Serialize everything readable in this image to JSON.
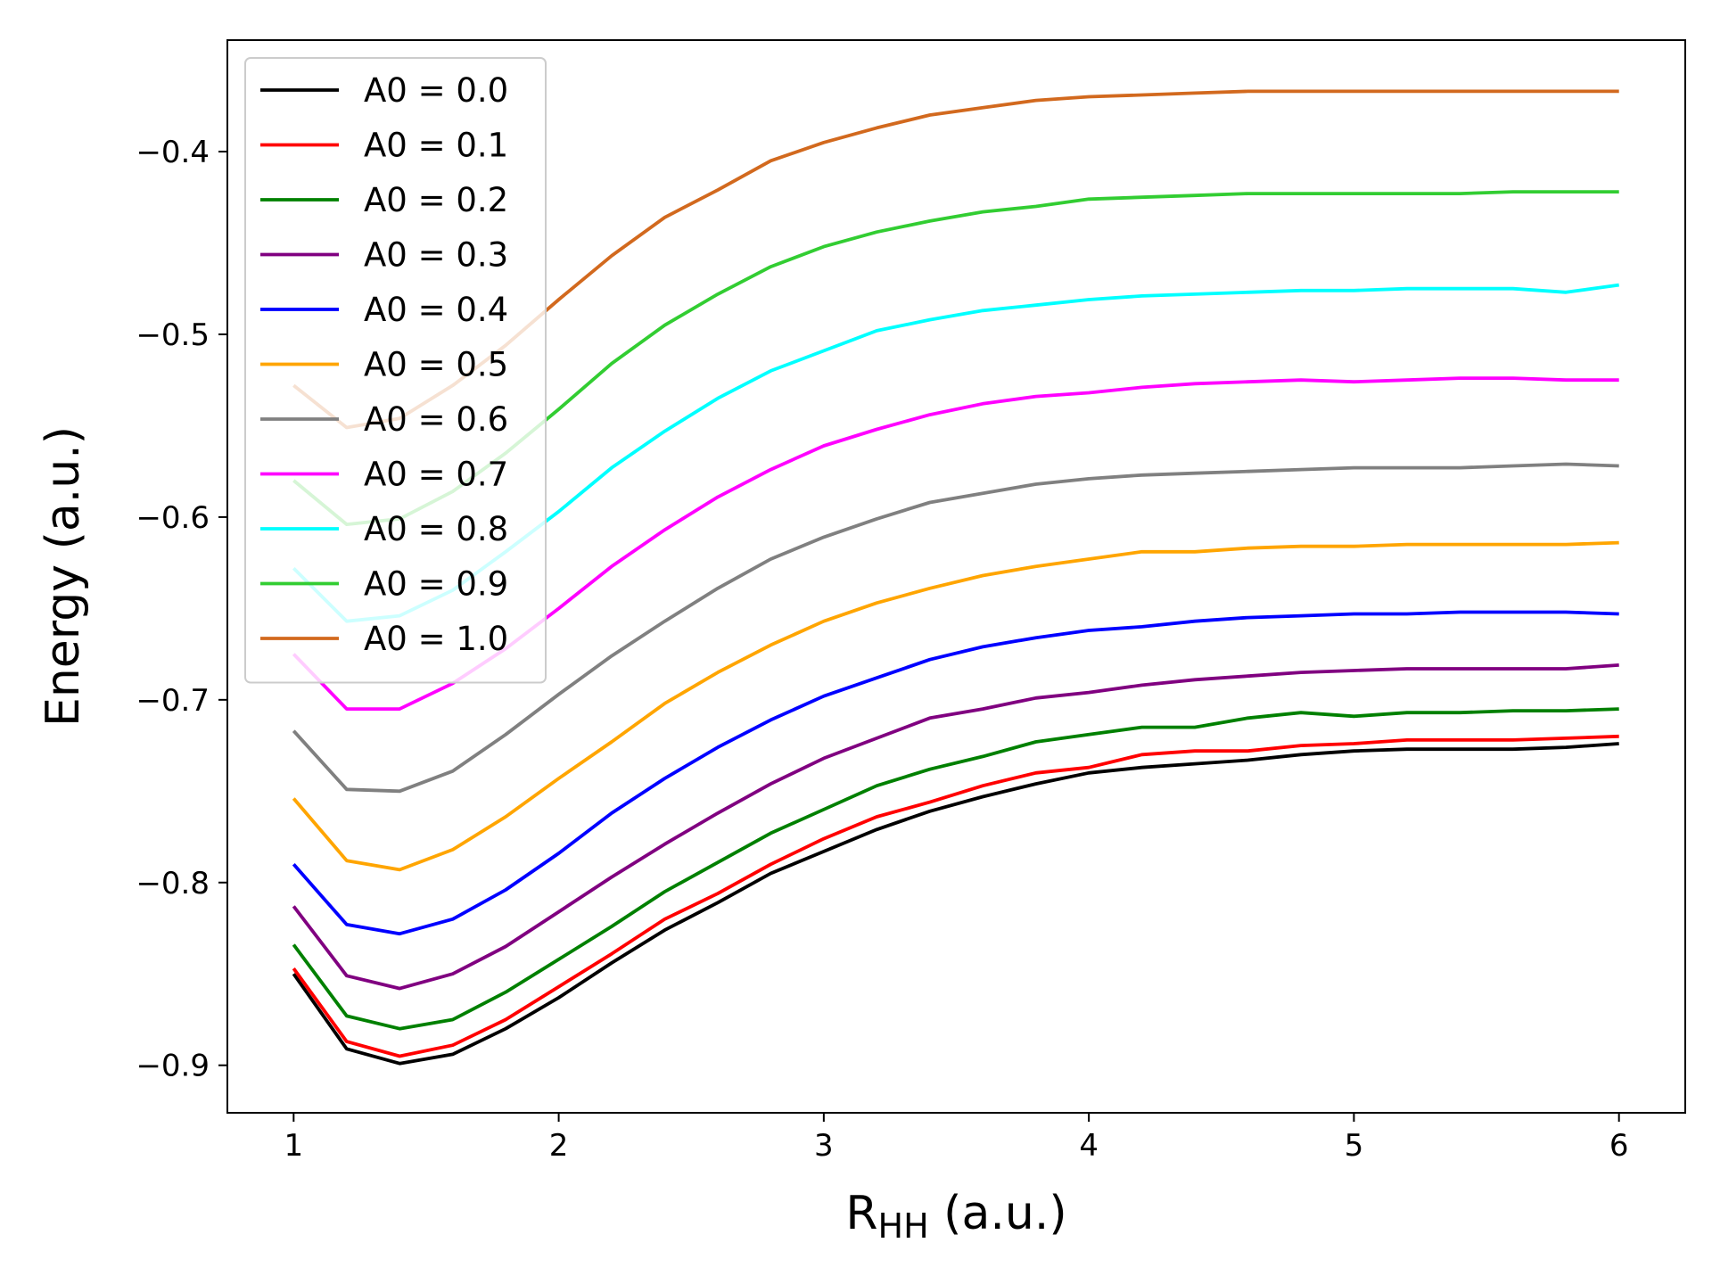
{
  "chart_data": {
    "type": "line",
    "xlabel": {
      "main": "R",
      "sub": "HH",
      "unit": " (a.u.)"
    },
    "ylabel": "Energy (a.u.)",
    "xlim": [
      0.75,
      6.25
    ],
    "ylim": [
      -0.926,
      -0.339
    ],
    "xticks": [
      1,
      2,
      3,
      4,
      5,
      6
    ],
    "xtick_labels": [
      "1",
      "2",
      "3",
      "4",
      "5",
      "6"
    ],
    "yticks": [
      -0.4,
      -0.5,
      -0.6,
      -0.7,
      -0.8,
      -0.9
    ],
    "ytick_labels": [
      "−0.4",
      "−0.5",
      "−0.6",
      "−0.7",
      "−0.8",
      "−0.9"
    ],
    "grid": false,
    "legend_position": "top-left",
    "x": [
      1.0,
      1.2,
      1.4,
      1.6,
      1.8,
      2.0,
      2.2,
      2.4,
      2.6,
      2.8,
      3.0,
      3.2,
      3.4,
      3.6,
      3.8,
      4.0,
      4.2,
      4.4,
      4.6,
      4.8,
      5.0,
      5.2,
      5.4,
      5.6,
      5.8,
      6.0
    ],
    "series": [
      {
        "name": "A0 = 0.0",
        "color": "#000000",
        "values": [
          -0.85,
          -0.891,
          -0.899,
          -0.894,
          -0.88,
          -0.863,
          -0.844,
          -0.826,
          -0.811,
          -0.795,
          -0.783,
          -0.771,
          -0.761,
          -0.753,
          -0.746,
          -0.74,
          -0.737,
          -0.735,
          -0.733,
          -0.73,
          -0.728,
          -0.727,
          -0.727,
          -0.727,
          -0.726,
          -0.724
        ]
      },
      {
        "name": "A0 = 0.1",
        "color": "#ff0000",
        "values": [
          -0.847,
          -0.887,
          -0.895,
          -0.889,
          -0.875,
          -0.857,
          -0.839,
          -0.82,
          -0.806,
          -0.79,
          -0.776,
          -0.764,
          -0.756,
          -0.747,
          -0.74,
          -0.737,
          -0.73,
          -0.728,
          -0.728,
          -0.725,
          -0.724,
          -0.722,
          -0.722,
          -0.722,
          -0.721,
          -0.72
        ]
      },
      {
        "name": "A0 = 0.2",
        "color": "#008000",
        "values": [
          -0.834,
          -0.873,
          -0.88,
          -0.875,
          -0.86,
          -0.842,
          -0.824,
          -0.805,
          -0.789,
          -0.773,
          -0.76,
          -0.747,
          -0.738,
          -0.731,
          -0.723,
          -0.719,
          -0.715,
          -0.715,
          -0.71,
          -0.707,
          -0.709,
          -0.707,
          -0.707,
          -0.706,
          -0.706,
          -0.705
        ]
      },
      {
        "name": "A0 = 0.3",
        "color": "#800080",
        "values": [
          -0.813,
          -0.851,
          -0.858,
          -0.85,
          -0.835,
          -0.816,
          -0.797,
          -0.779,
          -0.762,
          -0.746,
          -0.732,
          -0.721,
          -0.71,
          -0.705,
          -0.699,
          -0.696,
          -0.692,
          -0.689,
          -0.687,
          -0.685,
          -0.684,
          -0.683,
          -0.683,
          -0.683,
          -0.683,
          -0.681
        ]
      },
      {
        "name": "A0 = 0.4",
        "color": "#0000ff",
        "values": [
          -0.79,
          -0.823,
          -0.828,
          -0.82,
          -0.804,
          -0.784,
          -0.762,
          -0.743,
          -0.726,
          -0.711,
          -0.698,
          -0.688,
          -0.678,
          -0.671,
          -0.666,
          -0.662,
          -0.66,
          -0.657,
          -0.655,
          -0.654,
          -0.653,
          -0.653,
          -0.652,
          -0.652,
          -0.652,
          -0.653
        ]
      },
      {
        "name": "A0 = 0.5",
        "color": "#ffa500",
        "values": [
          -0.754,
          -0.788,
          -0.793,
          -0.782,
          -0.764,
          -0.743,
          -0.723,
          -0.702,
          -0.685,
          -0.67,
          -0.657,
          -0.647,
          -0.639,
          -0.632,
          -0.627,
          -0.623,
          -0.619,
          -0.619,
          -0.617,
          -0.616,
          -0.616,
          -0.615,
          -0.615,
          -0.615,
          -0.615,
          -0.614
        ]
      },
      {
        "name": "A0 = 0.6",
        "color": "#808080",
        "values": [
          -0.717,
          -0.749,
          -0.75,
          -0.739,
          -0.719,
          -0.697,
          -0.676,
          -0.657,
          -0.639,
          -0.623,
          -0.611,
          -0.601,
          -0.592,
          -0.587,
          -0.582,
          -0.579,
          -0.577,
          -0.576,
          -0.575,
          -0.574,
          -0.573,
          -0.573,
          -0.573,
          -0.572,
          -0.571,
          -0.572
        ]
      },
      {
        "name": "A0 = 0.7",
        "color": "#ff00ff",
        "values": [
          -0.675,
          -0.705,
          -0.705,
          -0.691,
          -0.672,
          -0.65,
          -0.627,
          -0.607,
          -0.589,
          -0.574,
          -0.561,
          -0.552,
          -0.544,
          -0.538,
          -0.534,
          -0.532,
          -0.529,
          -0.527,
          -0.526,
          -0.525,
          -0.526,
          -0.525,
          -0.524,
          -0.524,
          -0.525,
          -0.525
        ]
      },
      {
        "name": "A0 = 0.8",
        "color": "#00ffff",
        "values": [
          -0.628,
          -0.657,
          -0.654,
          -0.64,
          -0.619,
          -0.597,
          -0.573,
          -0.553,
          -0.535,
          -0.52,
          -0.509,
          -0.498,
          -0.492,
          -0.487,
          -0.484,
          -0.481,
          -0.479,
          -0.478,
          -0.477,
          -0.476,
          -0.476,
          -0.475,
          -0.475,
          -0.475,
          -0.477,
          -0.473
        ]
      },
      {
        "name": "A0 = 0.9",
        "color": "#32cd32",
        "values": [
          -0.58,
          -0.604,
          -0.601,
          -0.586,
          -0.565,
          -0.541,
          -0.516,
          -0.495,
          -0.478,
          -0.463,
          -0.452,
          -0.444,
          -0.438,
          -0.433,
          -0.43,
          -0.426,
          -0.425,
          -0.424,
          -0.423,
          -0.423,
          -0.423,
          -0.423,
          -0.423,
          -0.422,
          -0.422,
          -0.422
        ]
      },
      {
        "name": "A0 = 1.0",
        "color": "#d2691e",
        "values": [
          -0.528,
          -0.551,
          -0.546,
          -0.528,
          -0.506,
          -0.481,
          -0.457,
          -0.436,
          -0.421,
          -0.405,
          -0.395,
          -0.387,
          -0.38,
          -0.376,
          -0.372,
          -0.37,
          -0.369,
          -0.368,
          -0.367,
          -0.367,
          -0.367,
          -0.367,
          -0.367,
          -0.367,
          -0.367,
          -0.367
        ]
      }
    ]
  }
}
